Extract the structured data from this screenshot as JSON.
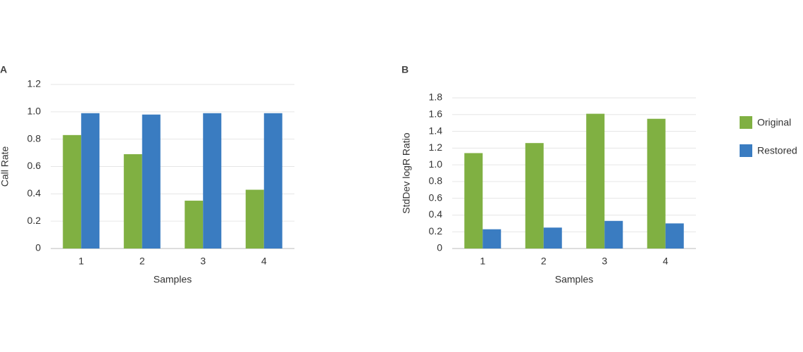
{
  "chart_data": [
    {
      "type": "bar",
      "title": "A",
      "x_label": "Samples",
      "y_label": "Call Rate",
      "categories": [
        "1",
        "2",
        "3",
        "4"
      ],
      "series": [
        {
          "color": "#80b042",
          "values": [
            0.83,
            0.69,
            0.35,
            0.43
          ]
        },
        {
          "color": "#3a7cc1",
          "values": [
            0.99,
            0.98,
            0.99,
            0.99
          ]
        }
      ],
      "ylim": [
        0,
        1.2
      ],
      "yticks": [
        0,
        0.2,
        0.4,
        0.6,
        0.8,
        {
          "value": 1,
          "label": "1.0"
        },
        1.2
      ],
      "grid": true
    },
    {
      "type": "bar",
      "title": "B",
      "x_label": "Samples",
      "y_label": "StdDev logR Ratio",
      "categories": [
        "1",
        "2",
        "3",
        "4"
      ],
      "series": [
        {
          "name": "Original",
          "color": "#80b042",
          "values": [
            1.14,
            1.26,
            1.61,
            1.55
          ]
        },
        {
          "name": "Restored",
          "color": "#3a7cc1",
          "values": [
            0.23,
            0.25,
            0.33,
            0.3
          ]
        }
      ],
      "ylim": [
        0,
        1.8
      ],
      "yticks": [
        0,
        0.2,
        0.4,
        0.6,
        0.8,
        {
          "value": 1,
          "label": "1.0"
        },
        1.2,
        1.4,
        1.6,
        1.8
      ],
      "grid": true,
      "legend": "right"
    }
  ]
}
